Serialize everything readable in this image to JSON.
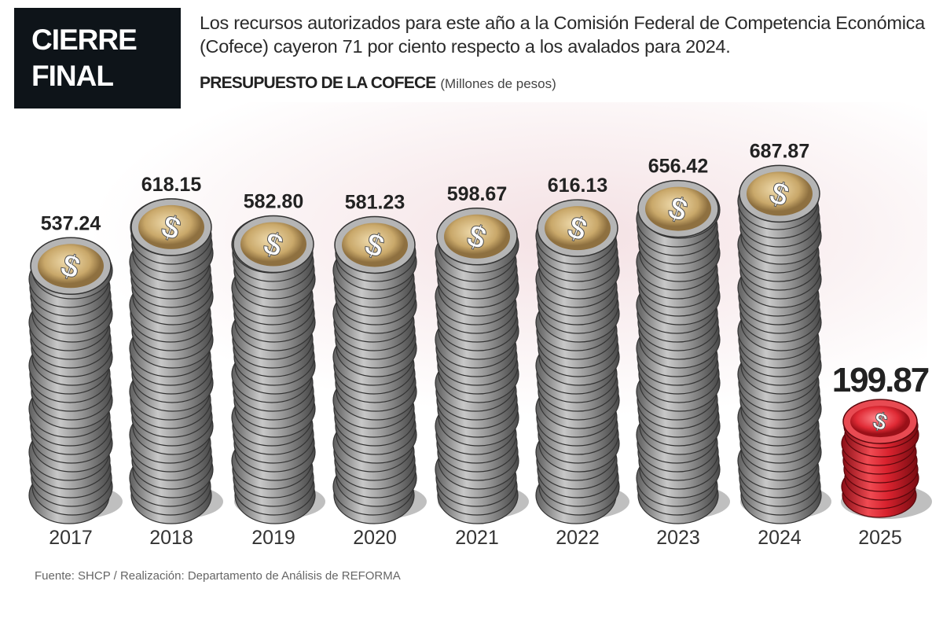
{
  "header": {
    "badge": [
      "CIERRE",
      "FINAL"
    ],
    "description": "Los recursos autorizados para este año a la Comisión Federal de Competencia Económica (Cofece) cayeron 71 por ciento respecto a los avalados para 2024.",
    "chart_title": "PRESUPUESTO DE LA COFECE",
    "chart_unit": "(Millones de pesos)"
  },
  "chart_data": {
    "type": "bar",
    "title": "PRESUPUESTO DE LA COFECE",
    "ylabel": "Millones de pesos",
    "categories": [
      "2017",
      "2018",
      "2019",
      "2020",
      "2021",
      "2022",
      "2023",
      "2024",
      "2025"
    ],
    "values": [
      537.24,
      618.15,
      582.8,
      581.23,
      598.67,
      616.13,
      656.42,
      687.87,
      199.87
    ],
    "labels": [
      "537.24",
      "618.15",
      "582.80",
      "581.23",
      "598.67",
      "616.13",
      "656.42",
      "687.87",
      "199.87"
    ],
    "highlight_index": 8,
    "colors": {
      "coin": "#9a9a9a",
      "face": "#c9a86a",
      "highlight": "#d8222e"
    },
    "ylim": [
      0,
      700
    ]
  },
  "source": "Fuente: SHCP / Realización: Departamento de Análisis de REFORMA"
}
